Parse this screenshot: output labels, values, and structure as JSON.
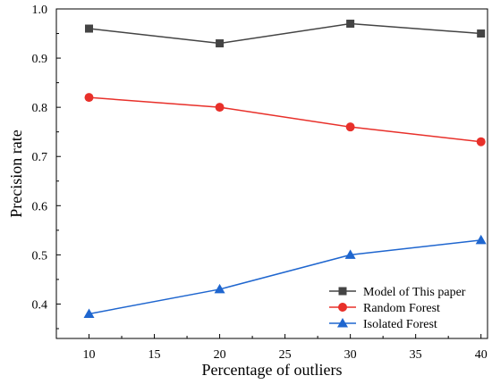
{
  "chart_data": {
    "type": "line",
    "title": "",
    "xlabel": "Percentage of outliers",
    "ylabel": "Precision rate",
    "x": [
      10,
      20,
      30,
      40
    ],
    "xlim": [
      7.5,
      40.5
    ],
    "ylim": [
      0.33,
      1.0
    ],
    "xticks": [
      10,
      15,
      20,
      25,
      30,
      35,
      40
    ],
    "yticks": [
      0.4,
      0.5,
      0.6,
      0.7,
      0.8,
      0.9,
      1.0
    ],
    "ytick_labels": [
      "0.4",
      "0.5",
      "0.6",
      "0.7",
      "0.8",
      "0.9",
      "1.0"
    ],
    "grid": false,
    "legend_position": "bottom-right",
    "series": [
      {
        "name": "Model of This paper",
        "values": [
          0.96,
          0.93,
          0.97,
          0.95
        ],
        "color": "#444444",
        "marker": "square"
      },
      {
        "name": "Random Forest",
        "values": [
          0.82,
          0.8,
          0.76,
          0.73
        ],
        "color": "#e8302a",
        "marker": "circle"
      },
      {
        "name": "Isolated Forest",
        "values": [
          0.38,
          0.43,
          0.5,
          0.53
        ],
        "color": "#1f66cf",
        "marker": "triangle"
      }
    ]
  }
}
